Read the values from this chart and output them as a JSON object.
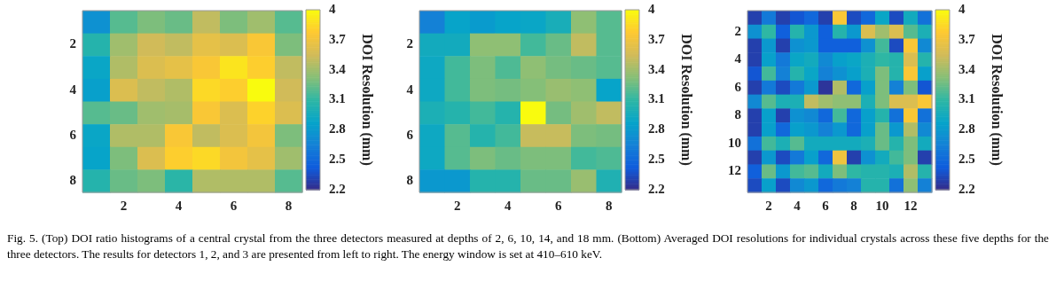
{
  "chart_data": [
    {
      "type": "heatmap",
      "clabel": "DOI Resolution (mm)",
      "clim": [
        2.2,
        4
      ],
      "cticks": [
        2.2,
        2.5,
        2.8,
        3.1,
        3.4,
        3.7,
        4
      ],
      "grid": false,
      "categories": [
        null,
        "2",
        null,
        "4",
        null,
        "6",
        null,
        "8"
      ],
      "y_categories": [
        null,
        "2",
        null,
        "4",
        null,
        "6",
        null,
        "8"
      ],
      "cells": [
        [
          2.75,
          3.2,
          3.3,
          3.25,
          3.5,
          3.3,
          3.4,
          3.2
        ],
        [
          3.05,
          3.4,
          3.55,
          3.5,
          3.65,
          3.6,
          3.75,
          3.3
        ],
        [
          2.9,
          3.45,
          3.6,
          3.65,
          3.75,
          3.9,
          3.8,
          3.5
        ],
        [
          2.85,
          3.6,
          3.5,
          3.45,
          3.85,
          3.8,
          4.0,
          3.55
        ],
        [
          3.2,
          3.25,
          3.4,
          3.42,
          3.75,
          3.6,
          3.82,
          3.6
        ],
        [
          2.9,
          3.45,
          3.45,
          3.75,
          3.5,
          3.6,
          3.72,
          3.3
        ],
        [
          2.88,
          3.3,
          3.6,
          3.8,
          3.85,
          3.72,
          3.65,
          3.4
        ],
        [
          3.05,
          3.25,
          3.3,
          3.08,
          3.45,
          3.45,
          3.45,
          3.2
        ]
      ]
    },
    {
      "type": "heatmap",
      "clabel": "DOI Resolution (mm)",
      "clim": [
        2.2,
        4
      ],
      "cticks": [
        2.2,
        2.5,
        2.8,
        3.1,
        3.4,
        3.7,
        4
      ],
      "grid": false,
      "categories": [
        null,
        "2",
        null,
        "4",
        null,
        "6",
        null,
        "8"
      ],
      "y_categories": [
        null,
        "2",
        null,
        "4",
        null,
        "6",
        null,
        "8"
      ],
      "cells": [
        [
          2.65,
          2.88,
          2.82,
          2.88,
          2.9,
          2.98,
          3.35,
          3.2
        ],
        [
          2.95,
          2.95,
          3.35,
          3.35,
          3.15,
          3.25,
          3.5,
          3.2
        ],
        [
          2.92,
          3.15,
          3.3,
          3.18,
          3.35,
          3.28,
          3.25,
          3.2
        ],
        [
          2.92,
          3.15,
          3.3,
          3.28,
          3.32,
          3.38,
          3.35,
          2.88
        ],
        [
          3.0,
          3.05,
          3.15,
          3.05,
          4.0,
          3.28,
          3.4,
          3.5
        ],
        [
          2.92,
          3.2,
          3.05,
          3.15,
          3.52,
          3.52,
          3.3,
          3.28
        ],
        [
          2.92,
          3.2,
          3.3,
          3.25,
          3.3,
          3.3,
          3.15,
          3.18
        ],
        [
          2.8,
          2.8,
          3.05,
          3.05,
          3.25,
          3.25,
          3.38,
          3.02
        ]
      ]
    },
    {
      "type": "heatmap",
      "clabel": "DOI Resolution (mm)",
      "clim": [
        2.2,
        4
      ],
      "cticks": [
        2.2,
        2.5,
        2.8,
        3.1,
        3.4,
        3.7,
        4
      ],
      "grid": false,
      "categories": [
        null,
        "2",
        null,
        "4",
        null,
        "6",
        null,
        "8",
        null,
        "10",
        null,
        "12",
        null
      ],
      "y_categories": [
        null,
        "2",
        null,
        "4",
        null,
        "6",
        null,
        "8",
        null,
        "10",
        null,
        "12",
        null
      ],
      "cells": [
        [
          2.3,
          2.6,
          2.3,
          2.4,
          2.5,
          2.3,
          3.75,
          2.35,
          2.5,
          2.9,
          2.35,
          2.95,
          2.55
        ],
        [
          2.75,
          3.1,
          2.45,
          3.05,
          2.8,
          2.45,
          3.05,
          2.8,
          3.6,
          3.4,
          3.6,
          3.2,
          3.0
        ],
        [
          2.3,
          2.8,
          2.3,
          2.75,
          2.8,
          2.45,
          2.45,
          2.45,
          2.75,
          3.15,
          2.35,
          3.75,
          2.7
        ],
        [
          2.3,
          2.85,
          2.6,
          2.9,
          2.95,
          2.7,
          2.85,
          2.9,
          3.0,
          3.1,
          3.05,
          3.6,
          3.05
        ],
        [
          2.4,
          3.15,
          2.65,
          3.05,
          2.9,
          2.65,
          2.75,
          2.85,
          3.0,
          3.3,
          3.05,
          3.75,
          2.85
        ],
        [
          2.3,
          2.6,
          2.35,
          2.6,
          2.8,
          2.25,
          3.45,
          2.5,
          2.85,
          3.3,
          2.65,
          3.3,
          2.4
        ],
        [
          2.7,
          3.2,
          3.0,
          3.0,
          3.5,
          3.4,
          3.35,
          3.35,
          3.0,
          3.3,
          3.6,
          3.6,
          3.75
        ],
        [
          2.3,
          2.85,
          2.3,
          2.75,
          2.7,
          2.5,
          3.15,
          2.5,
          2.85,
          3.05,
          2.55,
          3.75,
          2.55
        ],
        [
          2.3,
          2.85,
          2.5,
          2.85,
          2.8,
          2.65,
          2.8,
          2.5,
          2.85,
          3.25,
          2.8,
          3.45,
          2.7
        ],
        [
          2.55,
          3.15,
          3.0,
          3.2,
          2.95,
          2.95,
          2.95,
          2.95,
          3.0,
          3.25,
          3.05,
          3.3,
          2.95
        ],
        [
          2.3,
          2.8,
          2.35,
          2.6,
          2.85,
          2.5,
          3.7,
          2.3,
          2.75,
          2.95,
          3.15,
          3.3,
          2.3
        ],
        [
          2.45,
          3.25,
          2.8,
          3.15,
          3.2,
          2.95,
          3.3,
          3.1,
          3.05,
          3.05,
          3.0,
          3.45,
          3.05
        ],
        [
          2.35,
          2.85,
          2.35,
          2.7,
          2.8,
          2.5,
          2.6,
          2.65,
          3.05,
          3.05,
          2.55,
          3.35,
          2.65
        ]
      ],
      "annotations": [
        "Fig. 5.    (Top) DOI ratio histograms of a central crystal from the three detectors measured at depths of 2, 6, 10, 14, and 18 mm. (Bottom) Averaged DOI resolutions for individual crystals across these five depths for the three detectors. The results for detectors 1, 2, and 3 are presented from left to right. The energy window is set at 410–610 keV."
      ]
    }
  ]
}
